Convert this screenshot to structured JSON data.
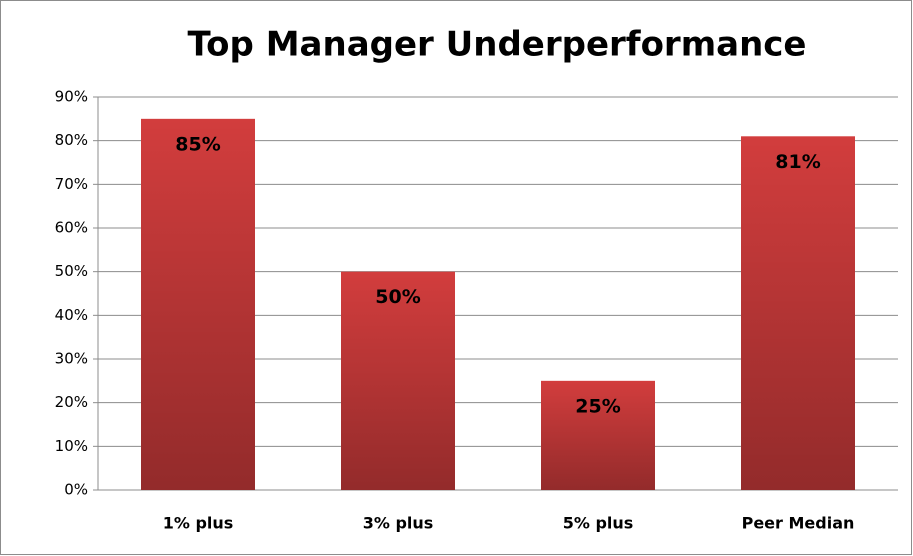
{
  "chart_data": {
    "type": "bar",
    "title": "Top Manager Underperformance",
    "categories": [
      "1% plus",
      "3% plus",
      "5% plus",
      "Peer Median"
    ],
    "values": [
      85,
      50,
      25,
      81
    ],
    "value_labels": [
      "85%",
      "50%",
      "25%",
      "81%"
    ],
    "color": "#d23d3d",
    "ylim": [
      0,
      90
    ],
    "yticks": [
      {
        "value": 0,
        "label": "0%"
      },
      {
        "value": 10,
        "label": "10%"
      },
      {
        "value": 20,
        "label": "20%"
      },
      {
        "value": 30,
        "label": "30%"
      },
      {
        "value": 40,
        "label": "40%"
      },
      {
        "value": 50,
        "label": "50%"
      },
      {
        "value": 60,
        "label": "60%"
      },
      {
        "value": 70,
        "label": "70%"
      },
      {
        "value": 80,
        "label": "80%"
      },
      {
        "value": 90,
        "label": "90%"
      }
    ],
    "grid": true
  }
}
